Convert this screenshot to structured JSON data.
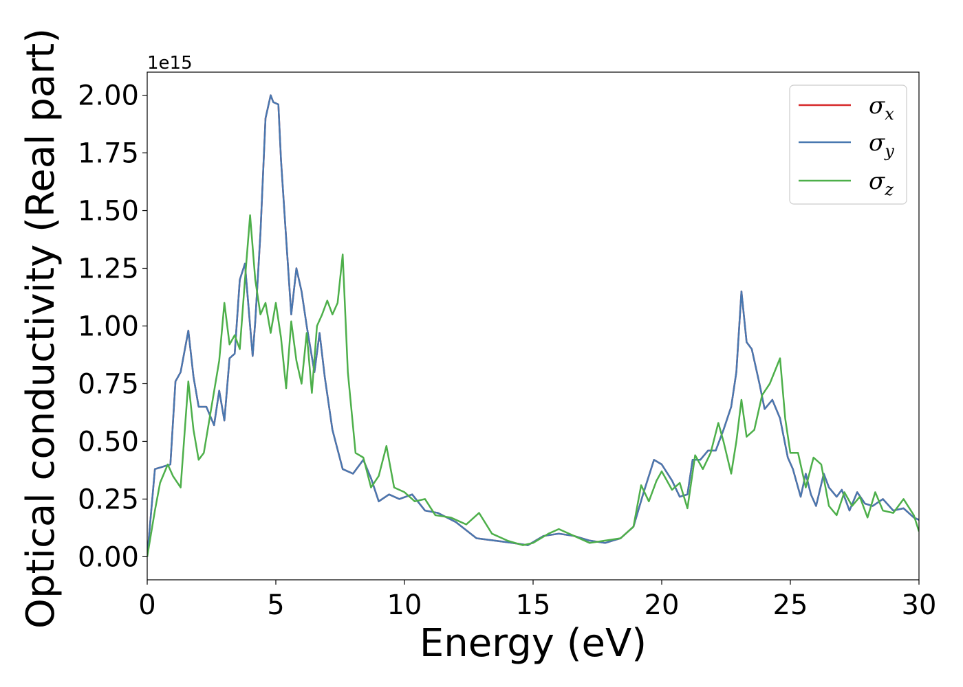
{
  "chart_data": {
    "type": "line",
    "title": "",
    "xlabel": "Energy (eV)",
    "ylabel": "Optical conductivity (Real part)",
    "y_offset_label": "1e15",
    "xlim": [
      0,
      30
    ],
    "ylim": [
      -0.1,
      2.1
    ],
    "x_ticks": [
      0,
      5,
      10,
      15,
      20,
      25,
      30
    ],
    "x_tick_labels": [
      "0",
      "5",
      "10",
      "15",
      "20",
      "25",
      "30"
    ],
    "y_ticks": [
      0,
      0.25,
      0.5,
      0.75,
      1.0,
      1.25,
      1.5,
      1.75,
      2.0
    ],
    "y_tick_labels": [
      "0.00",
      "0.25",
      "0.50",
      "0.75",
      "1.00",
      "1.25",
      "1.50",
      "1.75",
      "2.00"
    ],
    "grid": false,
    "legend_position": "top-right",
    "series": [
      {
        "name": "σ_x",
        "legend_symbol": "σ",
        "legend_subscript": "x",
        "color": "#d62728",
        "x": [
          0,
          0.3,
          0.6,
          0.9,
          1.1,
          1.3,
          1.6,
          1.8,
          2.0,
          2.3,
          2.6,
          2.8,
          3.0,
          3.2,
          3.4,
          3.6,
          3.8,
          4.0,
          4.1,
          4.2,
          4.4,
          4.6,
          4.8,
          4.9,
          5.1,
          5.2,
          5.4,
          5.6,
          5.8,
          6.0,
          6.2,
          6.5,
          6.7,
          6.9,
          7.2,
          7.6,
          8.0,
          8.4,
          8.7,
          9.0,
          9.4,
          9.8,
          10.3,
          10.8,
          11.3,
          12.0,
          12.8,
          13.5,
          14.2,
          14.8,
          15.4,
          16.0,
          16.6,
          17.2,
          17.8,
          18.4,
          18.9,
          19.3,
          19.7,
          20.0,
          20.4,
          20.7,
          21.0,
          21.2,
          21.5,
          21.8,
          22.1,
          22.4,
          22.7,
          22.9,
          23.1,
          23.3,
          23.5,
          23.8,
          24.0,
          24.3,
          24.6,
          24.9,
          25.1,
          25.4,
          25.6,
          25.8,
          26.0,
          26.3,
          26.5,
          26.8,
          27.0,
          27.3,
          27.6,
          27.9,
          28.2,
          28.6,
          29.0,
          29.4,
          29.8,
          30
        ],
        "values": [
          0,
          0.38,
          0.39,
          0.4,
          0.76,
          0.8,
          0.98,
          0.78,
          0.65,
          0.65,
          0.57,
          0.72,
          0.59,
          0.86,
          0.88,
          1.2,
          1.27,
          1.0,
          0.87,
          1.02,
          1.4,
          1.9,
          2.0,
          1.97,
          1.96,
          1.72,
          1.38,
          1.05,
          1.25,
          1.15,
          1.0,
          0.8,
          0.97,
          0.78,
          0.55,
          0.38,
          0.36,
          0.42,
          0.34,
          0.24,
          0.27,
          0.25,
          0.27,
          0.2,
          0.19,
          0.15,
          0.08,
          0.07,
          0.06,
          0.05,
          0.09,
          0.1,
          0.09,
          0.07,
          0.06,
          0.08,
          0.13,
          0.28,
          0.42,
          0.4,
          0.33,
          0.26,
          0.27,
          0.42,
          0.42,
          0.46,
          0.46,
          0.55,
          0.65,
          0.8,
          1.15,
          0.93,
          0.9,
          0.75,
          0.64,
          0.68,
          0.6,
          0.43,
          0.38,
          0.26,
          0.36,
          0.27,
          0.22,
          0.36,
          0.3,
          0.26,
          0.29,
          0.2,
          0.28,
          0.23,
          0.22,
          0.25,
          0.2,
          0.21,
          0.17,
          0.16
        ]
      },
      {
        "name": "σ_y",
        "legend_symbol": "σ",
        "legend_subscript": "y",
        "color": "#4878b0",
        "x": [
          0,
          0.3,
          0.6,
          0.9,
          1.1,
          1.3,
          1.6,
          1.8,
          2.0,
          2.3,
          2.6,
          2.8,
          3.0,
          3.2,
          3.4,
          3.6,
          3.8,
          4.0,
          4.1,
          4.2,
          4.4,
          4.6,
          4.8,
          4.9,
          5.1,
          5.2,
          5.4,
          5.6,
          5.8,
          6.0,
          6.2,
          6.5,
          6.7,
          6.9,
          7.2,
          7.6,
          8.0,
          8.4,
          8.7,
          9.0,
          9.4,
          9.8,
          10.3,
          10.8,
          11.3,
          12.0,
          12.8,
          13.5,
          14.2,
          14.8,
          15.4,
          16.0,
          16.6,
          17.2,
          17.8,
          18.4,
          18.9,
          19.3,
          19.7,
          20.0,
          20.4,
          20.7,
          21.0,
          21.2,
          21.5,
          21.8,
          22.1,
          22.4,
          22.7,
          22.9,
          23.1,
          23.3,
          23.5,
          23.8,
          24.0,
          24.3,
          24.6,
          24.9,
          25.1,
          25.4,
          25.6,
          25.8,
          26.0,
          26.3,
          26.5,
          26.8,
          27.0,
          27.3,
          27.6,
          27.9,
          28.2,
          28.6,
          29.0,
          29.4,
          29.8,
          30
        ],
        "values": [
          0,
          0.38,
          0.39,
          0.4,
          0.76,
          0.8,
          0.98,
          0.78,
          0.65,
          0.65,
          0.57,
          0.72,
          0.59,
          0.86,
          0.88,
          1.2,
          1.27,
          1.0,
          0.87,
          1.02,
          1.4,
          1.9,
          2.0,
          1.97,
          1.96,
          1.72,
          1.38,
          1.05,
          1.25,
          1.15,
          1.0,
          0.8,
          0.97,
          0.78,
          0.55,
          0.38,
          0.36,
          0.42,
          0.34,
          0.24,
          0.27,
          0.25,
          0.27,
          0.2,
          0.19,
          0.15,
          0.08,
          0.07,
          0.06,
          0.05,
          0.09,
          0.1,
          0.09,
          0.07,
          0.06,
          0.08,
          0.13,
          0.28,
          0.42,
          0.4,
          0.33,
          0.26,
          0.27,
          0.42,
          0.42,
          0.46,
          0.46,
          0.55,
          0.65,
          0.8,
          1.15,
          0.93,
          0.9,
          0.75,
          0.64,
          0.68,
          0.6,
          0.43,
          0.38,
          0.26,
          0.36,
          0.27,
          0.22,
          0.36,
          0.3,
          0.26,
          0.29,
          0.2,
          0.28,
          0.23,
          0.22,
          0.25,
          0.2,
          0.21,
          0.17,
          0.16
        ]
      },
      {
        "name": "σ_z",
        "legend_symbol": "σ",
        "legend_subscript": "z",
        "color": "#4daf4a",
        "x": [
          0,
          0.3,
          0.5,
          0.8,
          1.0,
          1.3,
          1.6,
          1.8,
          2.0,
          2.2,
          2.5,
          2.8,
          3.0,
          3.2,
          3.4,
          3.6,
          3.8,
          4.0,
          4.2,
          4.4,
          4.6,
          4.8,
          5.0,
          5.2,
          5.4,
          5.6,
          5.8,
          6.0,
          6.2,
          6.4,
          6.6,
          6.8,
          7.0,
          7.2,
          7.4,
          7.6,
          7.8,
          8.1,
          8.4,
          8.7,
          9.0,
          9.3,
          9.6,
          10.0,
          10.4,
          10.8,
          11.2,
          11.8,
          12.4,
          12.9,
          13.4,
          14.0,
          14.6,
          15.0,
          15.6,
          16.0,
          16.6,
          17.2,
          17.8,
          18.4,
          18.9,
          19.2,
          19.5,
          19.8,
          20.0,
          20.4,
          20.7,
          21.0,
          21.3,
          21.6,
          21.9,
          22.2,
          22.4,
          22.7,
          22.9,
          23.1,
          23.3,
          23.6,
          23.9,
          24.2,
          24.6,
          24.8,
          25.0,
          25.3,
          25.6,
          25.9,
          26.2,
          26.5,
          26.8,
          27.1,
          27.4,
          27.7,
          28.0,
          28.3,
          28.6,
          29.0,
          29.4,
          29.8,
          30
        ],
        "values": [
          0,
          0.2,
          0.32,
          0.4,
          0.35,
          0.3,
          0.76,
          0.55,
          0.42,
          0.45,
          0.65,
          0.85,
          1.1,
          0.92,
          0.96,
          0.9,
          1.2,
          1.48,
          1.2,
          1.05,
          1.1,
          0.97,
          1.1,
          0.95,
          0.73,
          1.02,
          0.85,
          0.75,
          0.97,
          0.71,
          1.0,
          1.05,
          1.11,
          1.05,
          1.1,
          1.31,
          0.8,
          0.45,
          0.43,
          0.3,
          0.35,
          0.48,
          0.3,
          0.28,
          0.24,
          0.25,
          0.18,
          0.17,
          0.14,
          0.19,
          0.1,
          0.07,
          0.05,
          0.06,
          0.1,
          0.12,
          0.09,
          0.06,
          0.07,
          0.08,
          0.13,
          0.31,
          0.24,
          0.33,
          0.37,
          0.29,
          0.32,
          0.21,
          0.44,
          0.38,
          0.45,
          0.58,
          0.5,
          0.36,
          0.5,
          0.68,
          0.52,
          0.55,
          0.7,
          0.75,
          0.86,
          0.6,
          0.45,
          0.45,
          0.3,
          0.43,
          0.4,
          0.22,
          0.18,
          0.28,
          0.22,
          0.26,
          0.17,
          0.28,
          0.2,
          0.19,
          0.25,
          0.18,
          0.11
        ]
      }
    ]
  }
}
